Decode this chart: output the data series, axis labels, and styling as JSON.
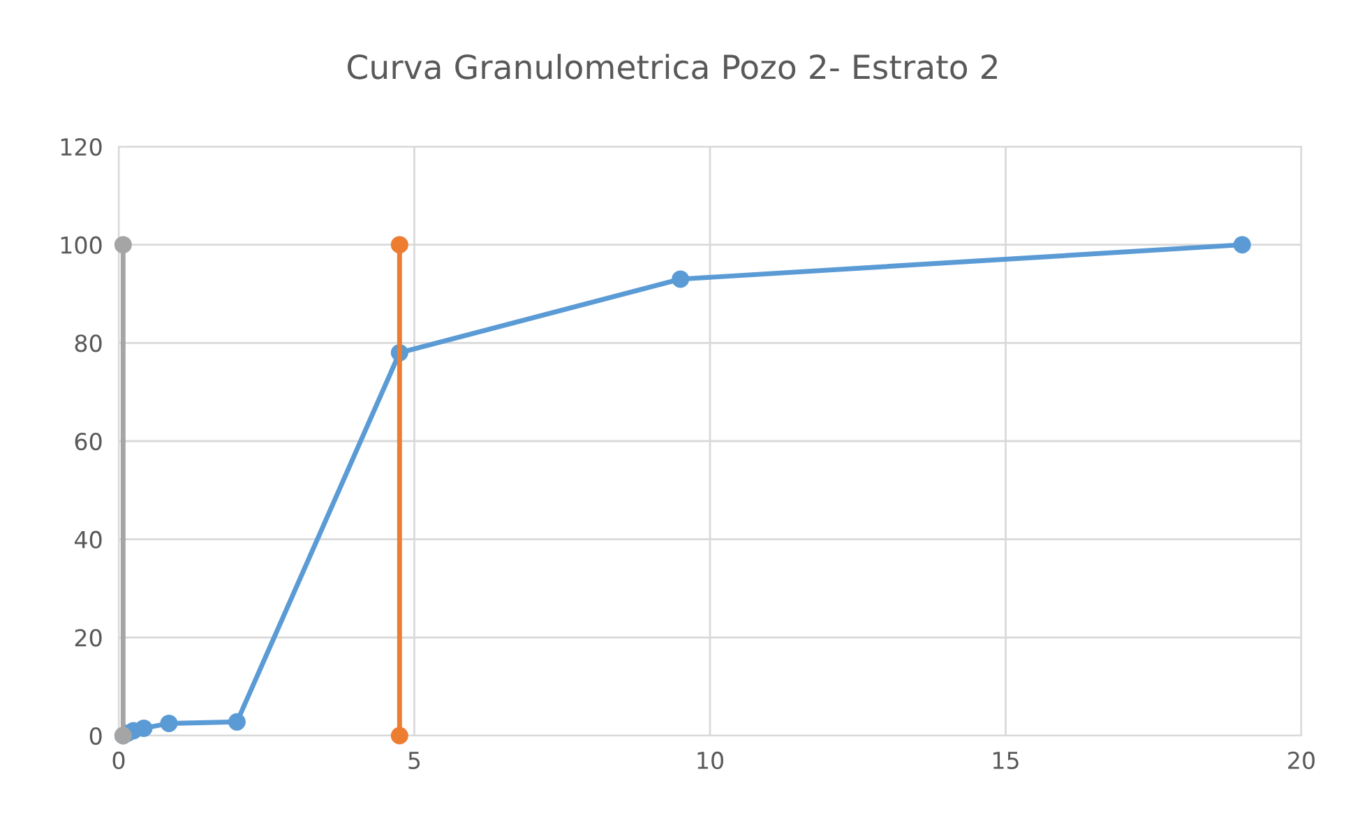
{
  "chart_data": {
    "type": "line",
    "title": "Curva Granulometrica Pozo 2- Estrato 2",
    "series": [
      {
        "color": "#5b9bd5",
        "x": [
          0.075,
          0.15,
          0.25,
          0.425,
          0.85,
          2,
          4.75,
          9.5,
          19
        ],
        "values": [
          0,
          0.5,
          1,
          1.5,
          2.5,
          2.8,
          78,
          93,
          100
        ]
      },
      {
        "color": "#ed7d31",
        "x": [
          4.75,
          4.75
        ],
        "values": [
          0,
          100
        ]
      },
      {
        "color": "#a5a5a5",
        "x": [
          0.075,
          0.075
        ],
        "values": [
          0,
          100
        ]
      }
    ],
    "xlim": [
      0,
      20
    ],
    "xticks": [
      0,
      5,
      10,
      15,
      20
    ],
    "ylim": [
      0,
      120
    ],
    "yticks": [
      0,
      20,
      40,
      60,
      80,
      100,
      120
    ],
    "grid": true,
    "marker": "circle",
    "line_style": "solid"
  }
}
